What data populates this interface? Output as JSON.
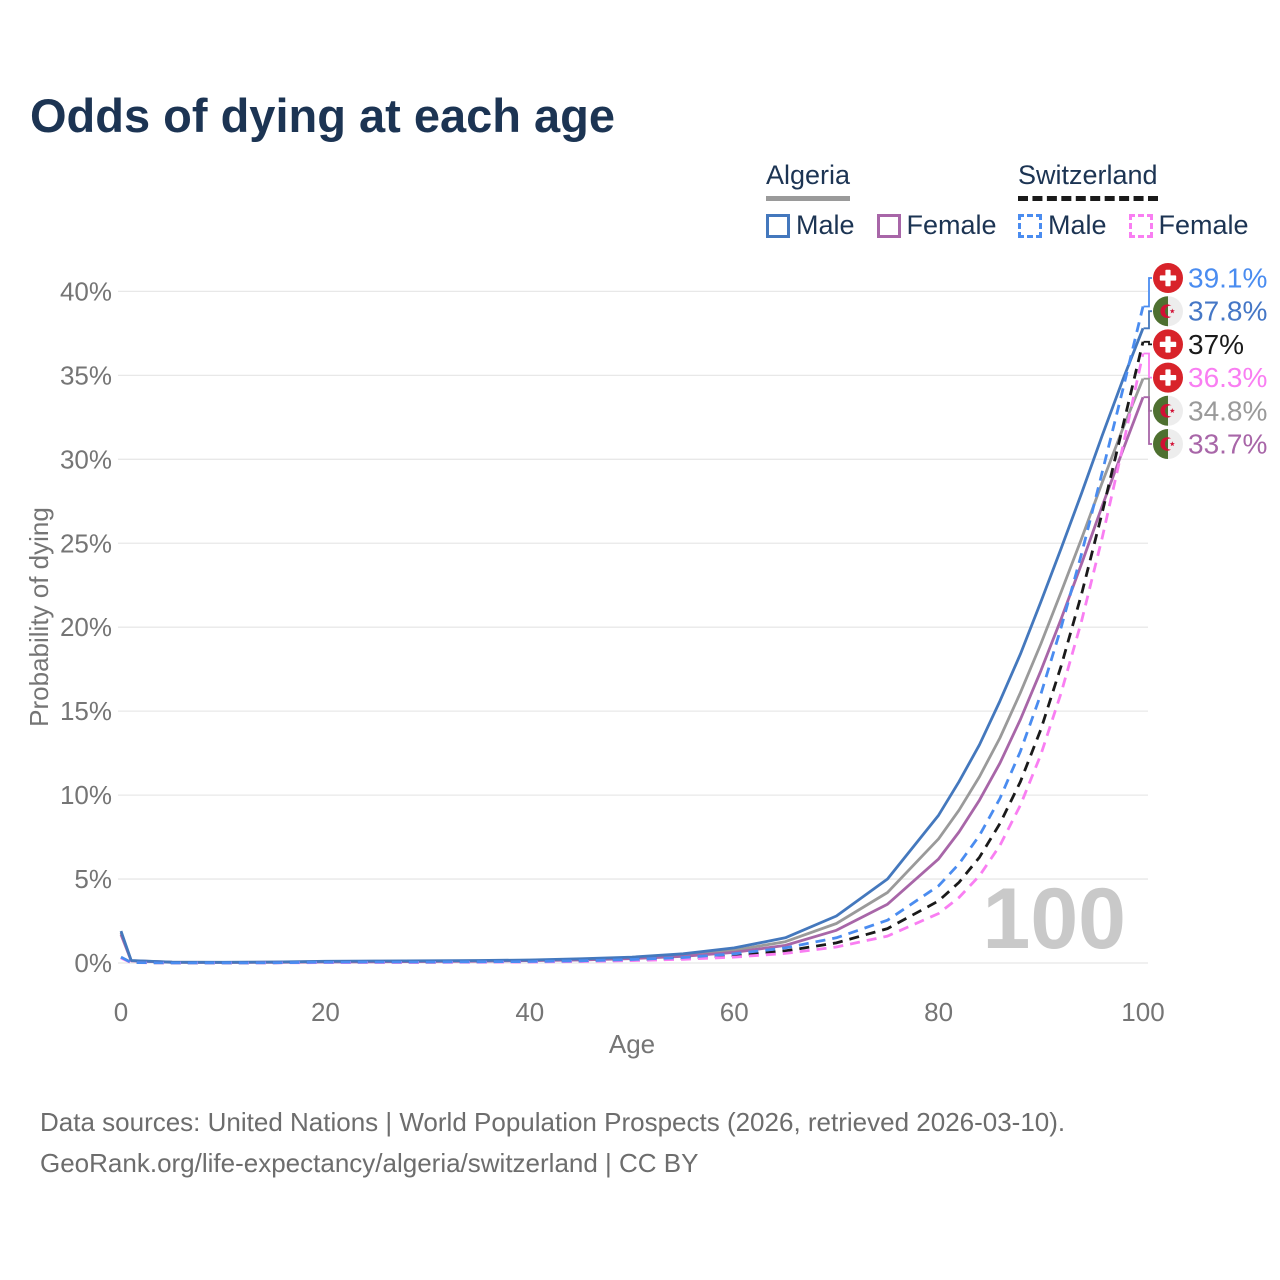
{
  "title": "Odds of dying at each age",
  "legend": {
    "groups": [
      {
        "country": "Algeria",
        "line_style": "solid",
        "underline_color": "#9a9a9a",
        "items": [
          {
            "label": "Male",
            "color": "#4478bd",
            "dashed": false
          },
          {
            "label": "Female",
            "color": "#a866a8",
            "dashed": false
          }
        ]
      },
      {
        "country": "Switzerland",
        "line_style": "dashed",
        "underline_color": "#1a1a1a",
        "items": [
          {
            "label": "Male",
            "color": "#4a8cf0",
            "dashed": true
          },
          {
            "label": "Female",
            "color": "#f97ef2",
            "dashed": true
          }
        ]
      }
    ]
  },
  "chart_data": {
    "type": "line",
    "title": "Odds of dying at each age",
    "xlabel": "Age",
    "ylabel": "Probability of dying",
    "xlim": [
      0,
      100
    ],
    "ylim": [
      0,
      41.5
    ],
    "x_ticks": [
      0,
      20,
      40,
      60,
      80,
      100
    ],
    "y_ticks": [
      0,
      5,
      10,
      15,
      20,
      25,
      30,
      35,
      40
    ],
    "y_tick_suffix": "%",
    "grid": "horizontal-only",
    "grid_color": "#e8e8e8",
    "tick_color": "#757575",
    "watermark": "100",
    "watermark_color": "#c9c9c9",
    "ages": [
      0,
      1,
      5,
      10,
      15,
      20,
      25,
      30,
      35,
      40,
      45,
      50,
      55,
      60,
      65,
      70,
      75,
      80,
      82,
      84,
      86,
      88,
      90,
      92,
      94,
      96,
      98,
      100
    ],
    "series": [
      {
        "key": "algeria-both",
        "name": "Algeria",
        "country": "Algeria",
        "sex": "Both",
        "color": "#9a9a9a",
        "dashed": false,
        "values": [
          1.8,
          0.14,
          0.045,
          0.035,
          0.05,
          0.08,
          0.1,
          0.11,
          0.13,
          0.16,
          0.21,
          0.3,
          0.47,
          0.76,
          1.27,
          2.35,
          4.2,
          7.4,
          9.1,
          11.1,
          13.4,
          16.1,
          19.0,
          22.1,
          25.3,
          28.6,
          31.8,
          34.8
        ]
      },
      {
        "key": "algeria-female",
        "name": "Algeria Female",
        "country": "Algeria",
        "sex": "Female",
        "color": "#a866a8",
        "dashed": false,
        "values": [
          1.7,
          0.13,
          0.04,
          0.03,
          0.04,
          0.06,
          0.07,
          0.09,
          0.11,
          0.14,
          0.18,
          0.26,
          0.4,
          0.63,
          1.05,
          1.95,
          3.5,
          6.2,
          7.8,
          9.7,
          11.9,
          14.5,
          17.4,
          20.5,
          23.8,
          27.2,
          30.5,
          33.7
        ]
      },
      {
        "key": "algeria-male",
        "name": "Algeria Male",
        "country": "Algeria",
        "sex": "Male",
        "color": "#4478bd",
        "dashed": false,
        "values": [
          1.9,
          0.15,
          0.05,
          0.04,
          0.06,
          0.1,
          0.12,
          0.13,
          0.15,
          0.18,
          0.25,
          0.35,
          0.55,
          0.9,
          1.5,
          2.8,
          5.0,
          8.8,
          10.8,
          13.0,
          15.6,
          18.4,
          21.5,
          24.7,
          28.0,
          31.4,
          34.7,
          37.8
        ]
      },
      {
        "key": "switzerland-both",
        "name": "Switzerland",
        "country": "Switzerland",
        "sex": "Both",
        "color": "#1a1a1a",
        "dashed": true,
        "values": [
          0.33,
          0.027,
          0.009,
          0.007,
          0.015,
          0.04,
          0.045,
          0.05,
          0.06,
          0.075,
          0.11,
          0.17,
          0.27,
          0.44,
          0.72,
          1.2,
          2.05,
          3.7,
          4.8,
          6.3,
          8.3,
          10.8,
          13.9,
          17.7,
          22.0,
          26.8,
          31.9,
          37.0
        ]
      },
      {
        "key": "switzerland-female",
        "name": "Switzerland Female",
        "country": "Switzerland",
        "sex": "Female",
        "color": "#f97ef2",
        "dashed": true,
        "values": [
          0.3,
          0.024,
          0.008,
          0.006,
          0.01,
          0.025,
          0.03,
          0.035,
          0.045,
          0.06,
          0.09,
          0.14,
          0.22,
          0.35,
          0.57,
          0.95,
          1.6,
          2.95,
          3.9,
          5.2,
          7.0,
          9.4,
          12.4,
          16.1,
          20.4,
          25.3,
          30.7,
          36.3
        ]
      },
      {
        "key": "switzerland-male",
        "name": "Switzerland Male",
        "country": "Switzerland",
        "sex": "Male",
        "color": "#4a8cf0",
        "dashed": true,
        "values": [
          0.35,
          0.03,
          0.01,
          0.008,
          0.02,
          0.05,
          0.06,
          0.06,
          0.07,
          0.09,
          0.13,
          0.21,
          0.33,
          0.55,
          0.9,
          1.5,
          2.55,
          4.6,
          5.9,
          7.6,
          9.8,
          12.6,
          16.0,
          20.0,
          24.4,
          29.2,
          34.1,
          39.1
        ]
      }
    ],
    "end_labels": [
      {
        "series": "switzerland-male",
        "text": "39.1%",
        "text_color": "#4a8cf0",
        "flag": "switzerland",
        "value": 39.1
      },
      {
        "series": "algeria-male",
        "text": "37.8%",
        "text_color": "#4577c6",
        "flag": "algeria",
        "value": 37.8
      },
      {
        "series": "switzerland-both",
        "text": "37%",
        "text_color": "#1a1a1a",
        "flag": "switzerland",
        "value": 37.0
      },
      {
        "series": "switzerland-female",
        "text": "36.3%",
        "text_color": "#f97ef2",
        "flag": "switzerland",
        "value": 36.3
      },
      {
        "series": "algeria-both",
        "text": "34.8%",
        "text_color": "#9a9a9a",
        "flag": "algeria",
        "value": 34.8
      },
      {
        "series": "algeria-female",
        "text": "33.7%",
        "text_color": "#a866a8",
        "flag": "algeria",
        "value": 33.7
      }
    ],
    "flag_colors": {
      "swiss_red": "#d8232a",
      "algeria_green": "#4e7030",
      "flag_white": "#ededed",
      "crescent_red": "#d21034"
    }
  },
  "footer": {
    "line1": "Data sources: United Nations | World Population Prospects (2026, retrieved 2026-03-10).",
    "line2": "GeoRank.org/life-expectancy/algeria/switzerland | CC BY"
  }
}
